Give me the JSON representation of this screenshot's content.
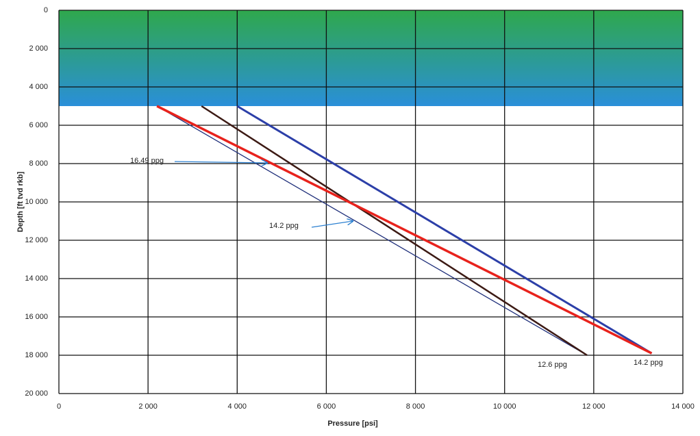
{
  "chart_data": {
    "type": "line",
    "xlabel": "Pressure [psi]",
    "ylabel": "Depth [ft tvd rkb]",
    "xlim": [
      0,
      14000
    ],
    "xticks": [
      0,
      {
        "value": 2000,
        "label": "2 000"
      },
      {
        "value": 4000,
        "label": "4 000"
      },
      {
        "value": 6000,
        "label": "6 000"
      },
      {
        "value": 8000,
        "label": "8 000"
      },
      {
        "value": 10000,
        "label": "10 000"
      },
      {
        "value": 12000,
        "label": "12 000"
      },
      {
        "value": 14000,
        "label": "14 000"
      }
    ],
    "ylim": [
      20000,
      0
    ],
    "yticks": [
      0,
      {
        "value": 2000,
        "label": "2 000"
      },
      {
        "value": 4000,
        "label": "4 000"
      },
      {
        "value": 6000,
        "label": "6 000"
      },
      {
        "value": 8000,
        "label": "8 000"
      },
      {
        "value": 10000,
        "label": "10 000"
      },
      {
        "value": 12000,
        "label": "12 000"
      },
      {
        "value": 14000,
        "label": "14 000"
      },
      {
        "value": 16000,
        "label": "16 000"
      },
      {
        "value": 18000,
        "label": "18 000"
      },
      {
        "value": 20000,
        "label": "20 000"
      }
    ],
    "grid": true,
    "shaded_range": {
      "ylim": [
        0,
        5000
      ],
      "colors": [
        "#2fa84c",
        "#2a8fd9"
      ]
    },
    "series": [
      {
        "color": "#1f2f7a",
        "width": 1.3,
        "x": [
          2200,
          11850
        ],
        "values": [
          5000,
          18000
        ]
      },
      {
        "color": "#3c1a14",
        "width": 2.5,
        "x": [
          3200,
          11850
        ],
        "values": [
          5000,
          18000
        ]
      },
      {
        "color": "#2c3fa8",
        "width": 3,
        "x": [
          4000,
          13300
        ],
        "values": [
          5000,
          17900
        ]
      },
      {
        "color": "#e8221c",
        "width": 3.5,
        "x": [
          2200,
          13300
        ],
        "values": [
          5000,
          17900
        ]
      }
    ],
    "annotations": [
      {
        "text": "16.49 ppg",
        "color": "#e8221c"
      },
      {
        "text": "14.2 ppg",
        "color": "#222222"
      },
      {
        "text": "12.6 ppg",
        "color": "#222222"
      },
      {
        "text": "14.2 ppg",
        "color": "#222222"
      }
    ]
  }
}
